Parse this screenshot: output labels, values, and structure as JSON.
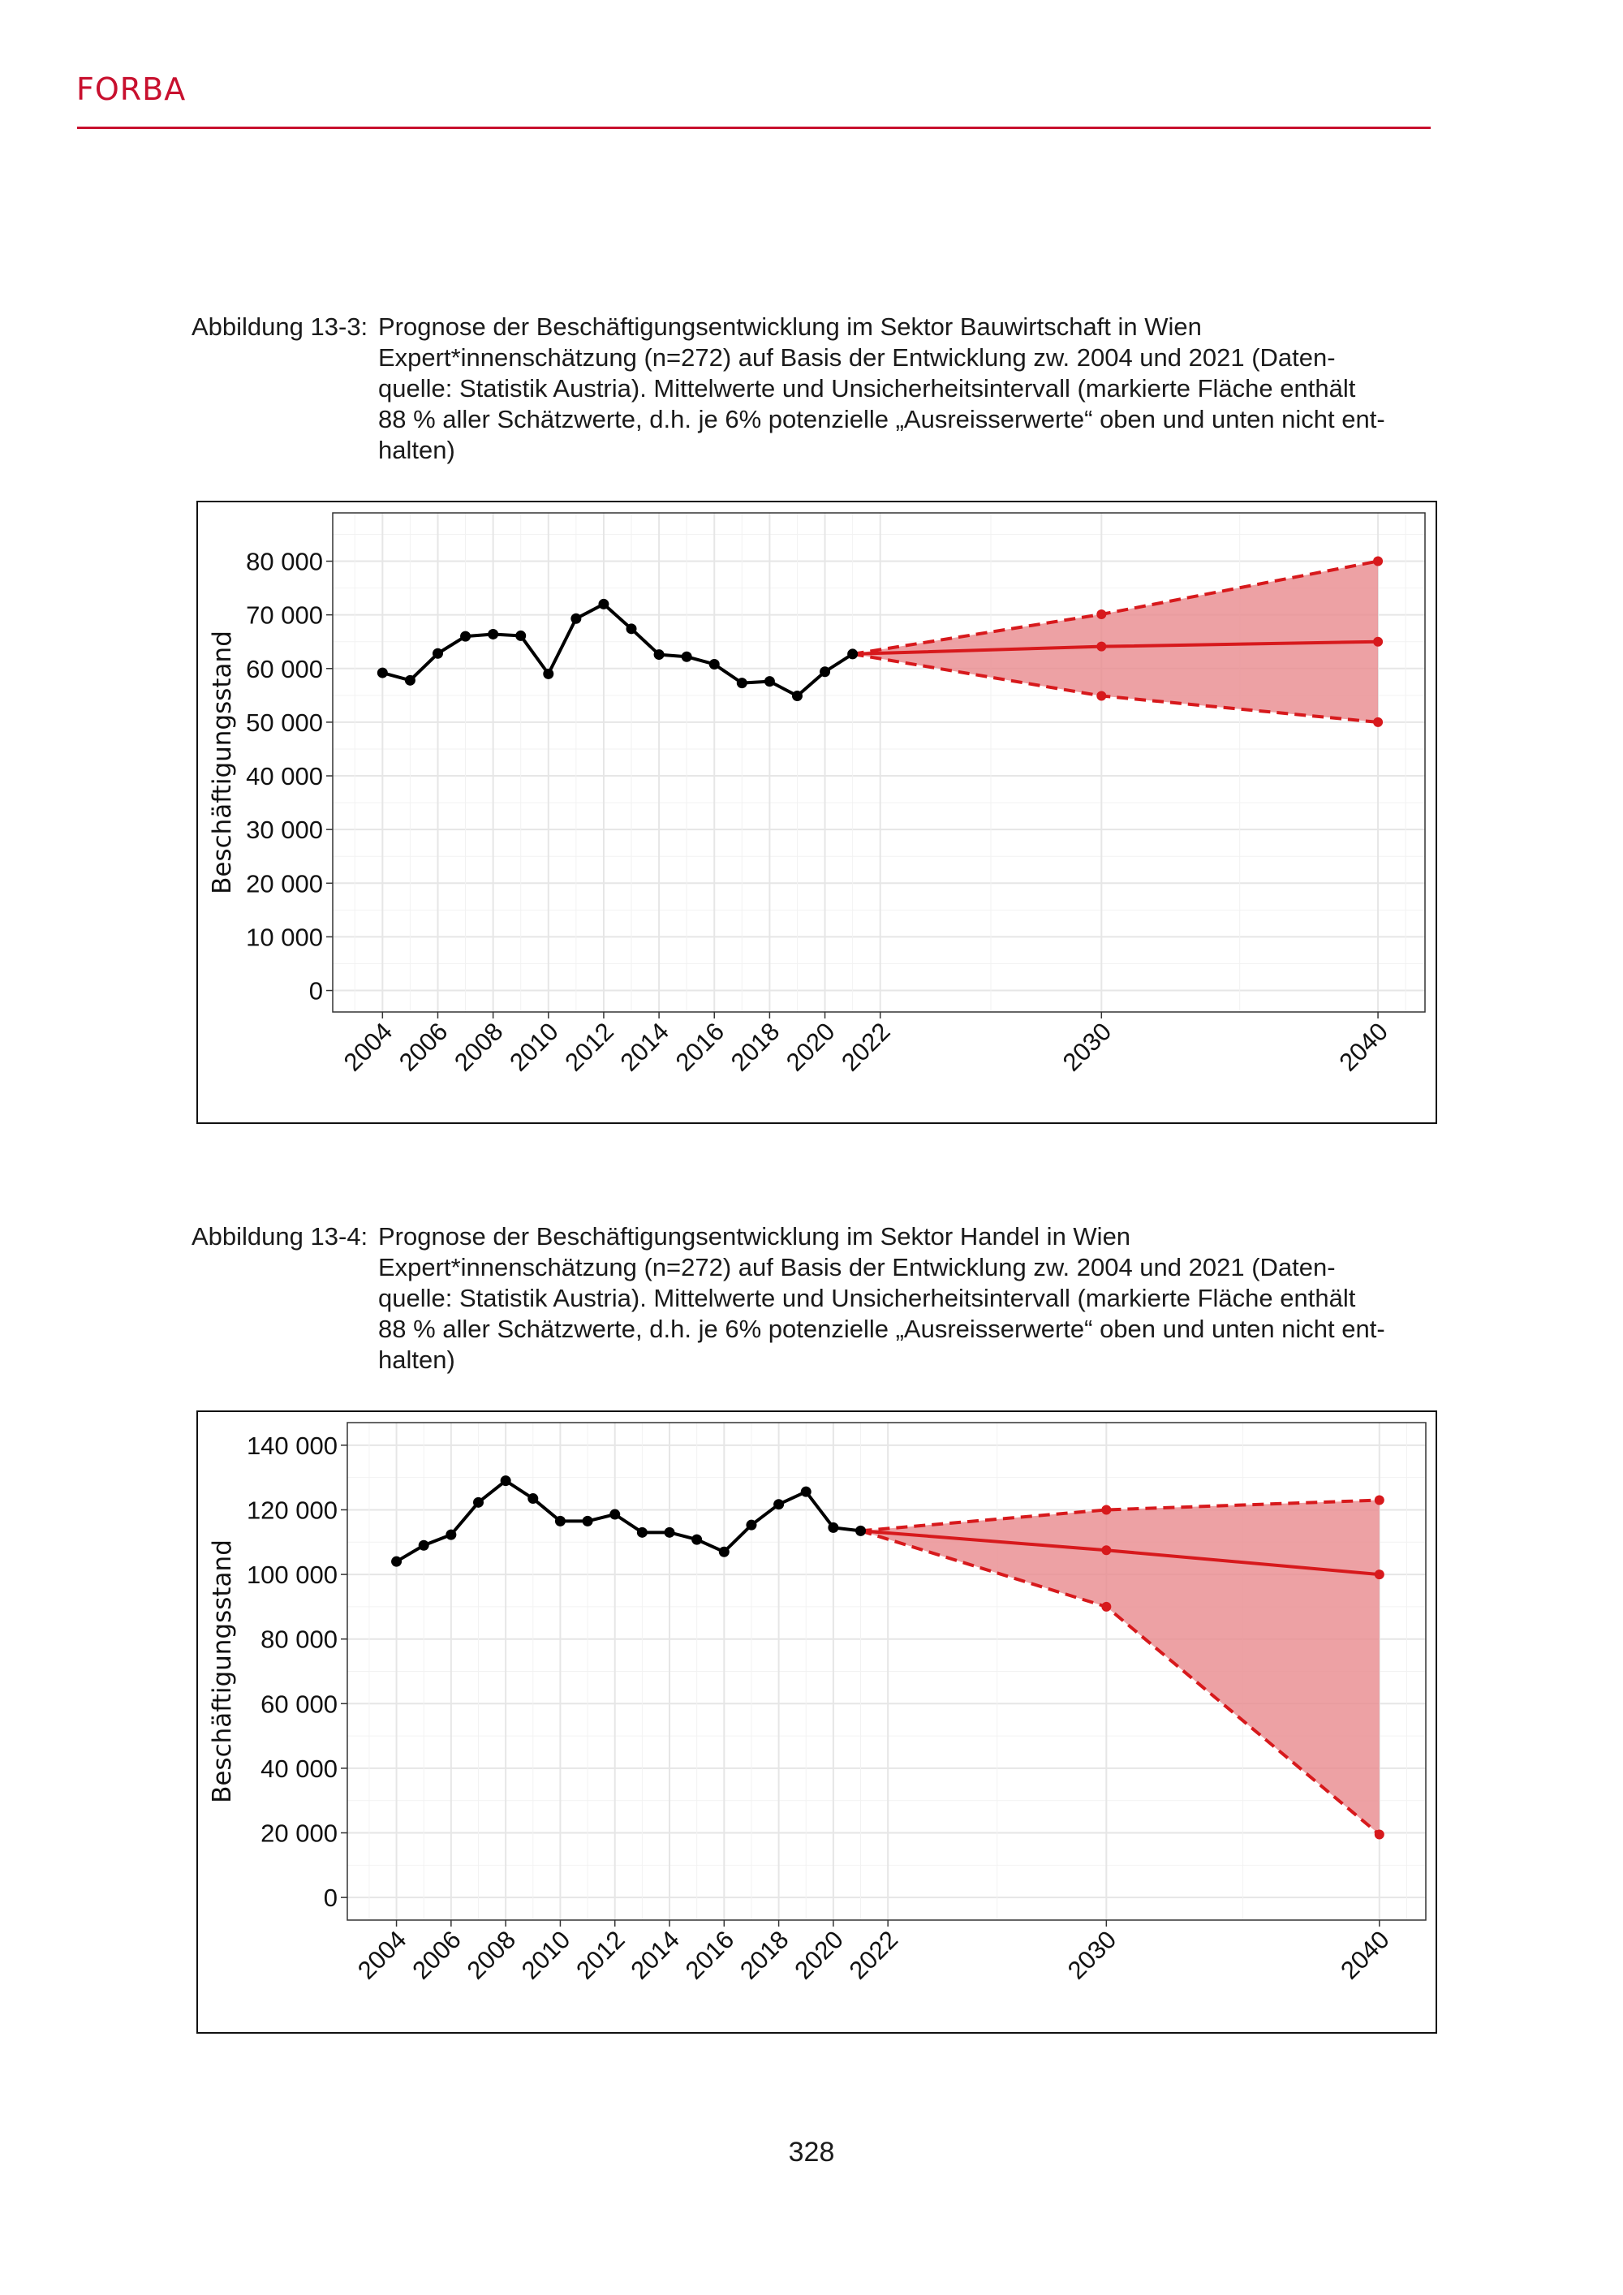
{
  "header": {
    "logo_text": "FORBA",
    "accent_color": "#c8102e"
  },
  "figures": [
    {
      "label": "Abbildung 13-3:",
      "title": "Prognose der Beschäftigungsentwicklung im Sektor Bauwirtschaft in Wien",
      "lines": [
        "Expert*innenschätzung (n=272) auf Basis der Entwicklung zw. 2004 und 2021 (Daten-",
        "quelle: Statistik Austria). Mittelwerte und Unsicherheitsintervall (markierte Fläche enthält",
        "88 % aller Schätzwerte, d.h. je 6% potenzielle „Ausreisserwerte“ oben und unten nicht ent-",
        "halten)"
      ]
    },
    {
      "label": "Abbildung 13-4:",
      "title": "Prognose der Beschäftigungsentwicklung im Sektor Handel in Wien",
      "lines": [
        "Expert*innenschätzung (n=272) auf Basis der Entwicklung zw. 2004 und 2021 (Daten-",
        "quelle: Statistik Austria). Mittelwerte und Unsicherheitsintervall (markierte Fläche enthält",
        "88 % aller Schätzwerte, d.h. je 6% potenzielle „Ausreisserwerte“ oben und unten nicht ent-",
        "halten)"
      ]
    }
  ],
  "chart_data": [
    {
      "type": "line",
      "ylabel": "Beschäftigungsstand",
      "xlabel": "",
      "xlim": [
        2002.2,
        2041.7
      ],
      "ylim": [
        -4000,
        89000
      ],
      "x_ticks": [
        2004,
        2006,
        2008,
        2010,
        2012,
        2014,
        2016,
        2018,
        2020,
        2022,
        2030,
        2040
      ],
      "y_ticks": [
        0,
        10000,
        20000,
        30000,
        40000,
        50000,
        60000,
        70000,
        80000
      ],
      "y_tick_labels": [
        "0",
        "10 000",
        "20 000",
        "30 000",
        "40 000",
        "50 000",
        "60 000",
        "70 000",
        "80 000"
      ],
      "grid": true,
      "colors": {
        "history": "#000000",
        "forecast": "#d7191c",
        "band": "#e88a8d"
      },
      "history": {
        "x": [
          2004,
          2005,
          2006,
          2007,
          2008,
          2009,
          2010,
          2011,
          2012,
          2013,
          2014,
          2015,
          2016,
          2017,
          2018,
          2019,
          2020,
          2021
        ],
        "y": [
          59200,
          57800,
          62800,
          66000,
          66400,
          66100,
          59000,
          69300,
          72000,
          67400,
          62600,
          62200,
          60800,
          57300,
          57600,
          54900,
          59400,
          62700
        ]
      },
      "forecast": {
        "x": [
          2021,
          2030,
          2040
        ],
        "mean": [
          62700,
          64100,
          65000
        ],
        "upper": [
          62700,
          70100,
          80000
        ],
        "lower": [
          62700,
          54900,
          50000
        ]
      }
    },
    {
      "type": "line",
      "ylabel": "Beschäftigungsstand",
      "xlabel": "",
      "xlim": [
        2002.2,
        2041.7
      ],
      "ylim": [
        -7000,
        147000
      ],
      "x_ticks": [
        2004,
        2006,
        2008,
        2010,
        2012,
        2014,
        2016,
        2018,
        2020,
        2022,
        2030,
        2040
      ],
      "y_ticks": [
        0,
        20000,
        40000,
        60000,
        80000,
        100000,
        120000,
        140000
      ],
      "y_tick_labels": [
        "0",
        "20 000",
        "40 000",
        "60 000",
        "80 000",
        "100 000",
        "120 000",
        "140 000"
      ],
      "grid": true,
      "colors": {
        "history": "#000000",
        "forecast": "#d7191c",
        "band": "#e88a8d"
      },
      "history": {
        "x": [
          2004,
          2005,
          2006,
          2007,
          2008,
          2009,
          2010,
          2011,
          2012,
          2013,
          2014,
          2015,
          2016,
          2017,
          2018,
          2019,
          2020,
          2021
        ],
        "y": [
          104000,
          109000,
          112300,
          122300,
          129000,
          123500,
          116500,
          116500,
          118600,
          113000,
          113000,
          110800,
          107000,
          115300,
          121700,
          125600,
          114500,
          113500
        ]
      },
      "forecast": {
        "x": [
          2021,
          2030,
          2040
        ],
        "mean": [
          113500,
          107500,
          100000
        ],
        "upper": [
          113500,
          120000,
          123000
        ],
        "lower": [
          113500,
          90000,
          19500
        ]
      }
    }
  ],
  "footer": {
    "page_number": "328"
  }
}
